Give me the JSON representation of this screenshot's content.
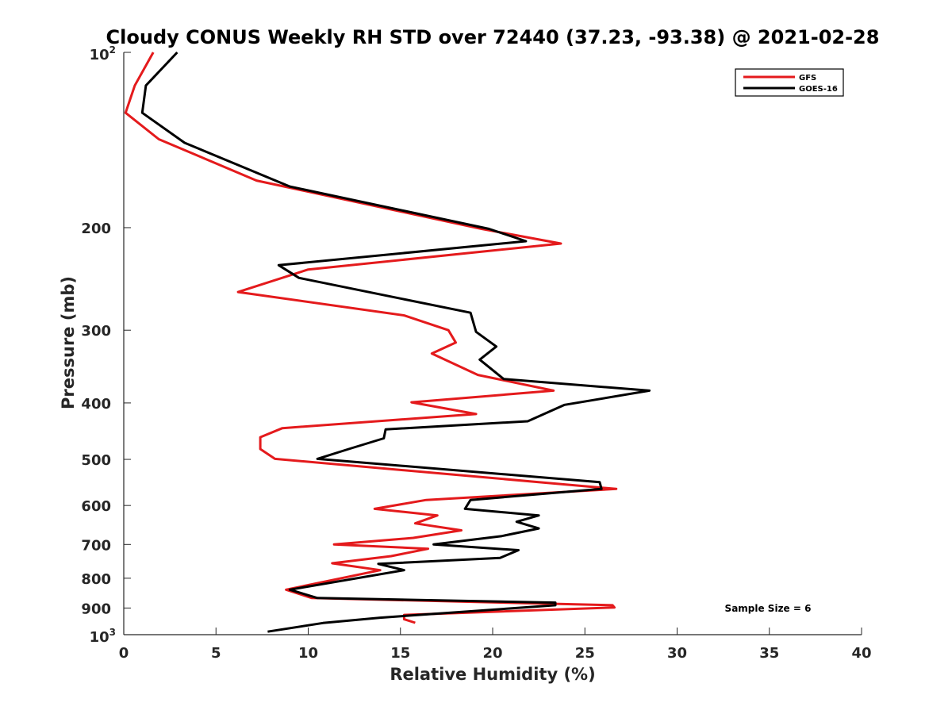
{
  "chart_data": {
    "type": "line",
    "title": "Cloudy CONUS Weekly RH STD over 72440 (37.23, -93.38) @ 2021-02-28",
    "xlabel": "Relative Humidity (%)",
    "ylabel": "Pressure (mb)",
    "xlim": [
      0,
      40
    ],
    "ylim": [
      100,
      1000
    ],
    "yscale": "log",
    "y_reversed": true,
    "grid": false,
    "legend_position": "top-right",
    "x_ticks": [
      "0",
      "5",
      "10",
      "15",
      "20",
      "25",
      "30",
      "35",
      "40"
    ],
    "y_ticks": [
      {
        "value": 100,
        "base": "10",
        "exp": "2"
      },
      {
        "value": 200,
        "label": "200"
      },
      {
        "value": 300,
        "label": "300"
      },
      {
        "value": 400,
        "label": "400"
      },
      {
        "value": 500,
        "label": "500"
      },
      {
        "value": 600,
        "label": "600"
      },
      {
        "value": 700,
        "label": "700"
      },
      {
        "value": 800,
        "label": "800"
      },
      {
        "value": 900,
        "label": "900"
      },
      {
        "value": 1000,
        "base": "10",
        "exp": "3"
      }
    ],
    "annotation": "Sample Size = 6",
    "series": [
      {
        "name": "GFS",
        "color": "#e41a1c",
        "points": [
          [
            1.6,
            100
          ],
          [
            0.6,
            114
          ],
          [
            0.1,
            127
          ],
          [
            1.9,
            141
          ],
          [
            7.2,
            166
          ],
          [
            19.4,
            201
          ],
          [
            23.7,
            213
          ],
          [
            10.0,
            236
          ],
          [
            6.2,
            258
          ],
          [
            15.2,
            283
          ],
          [
            17.6,
            300
          ],
          [
            18.0,
            315
          ],
          [
            16.7,
            329
          ],
          [
            19.2,
            358
          ],
          [
            23.3,
            381
          ],
          [
            15.6,
            399
          ],
          [
            19.1,
            418
          ],
          [
            8.6,
            442
          ],
          [
            7.4,
            458
          ],
          [
            7.4,
            480
          ],
          [
            8.2,
            499
          ],
          [
            22.5,
            547
          ],
          [
            26.7,
            562
          ],
          [
            16.4,
            587
          ],
          [
            13.6,
            608
          ],
          [
            17.0,
            624
          ],
          [
            15.8,
            644
          ],
          [
            18.3,
            662
          ],
          [
            15.7,
            682
          ],
          [
            11.4,
            700
          ],
          [
            16.5,
            712
          ],
          [
            14.5,
            733
          ],
          [
            11.3,
            754
          ],
          [
            13.9,
            775
          ],
          [
            8.8,
            837
          ],
          [
            10.2,
            865
          ],
          [
            26.5,
            890
          ],
          [
            26.6,
            898
          ],
          [
            15.2,
            925
          ],
          [
            15.2,
            941
          ],
          [
            15.8,
            954
          ]
        ]
      },
      {
        "name": "GOES-16",
        "color": "#000000",
        "points": [
          [
            2.9,
            100
          ],
          [
            1.2,
            114
          ],
          [
            1.0,
            127
          ],
          [
            3.3,
            143
          ],
          [
            9.0,
            170
          ],
          [
            19.8,
            201
          ],
          [
            21.8,
            211
          ],
          [
            8.4,
            232
          ],
          [
            9.5,
            244
          ],
          [
            18.8,
            280
          ],
          [
            19.1,
            302
          ],
          [
            20.2,
            320
          ],
          [
            19.3,
            337
          ],
          [
            20.6,
            364
          ],
          [
            28.5,
            381
          ],
          [
            23.9,
            403
          ],
          [
            21.9,
            430
          ],
          [
            14.2,
            444
          ],
          [
            14.1,
            460
          ],
          [
            12.2,
            480
          ],
          [
            10.5,
            499
          ],
          [
            25.8,
            547
          ],
          [
            25.9,
            562
          ],
          [
            18.8,
            587
          ],
          [
            18.5,
            608
          ],
          [
            22.5,
            624
          ],
          [
            21.3,
            640
          ],
          [
            22.5,
            657
          ],
          [
            20.5,
            677
          ],
          [
            16.8,
            700
          ],
          [
            21.4,
            716
          ],
          [
            20.4,
            738
          ],
          [
            13.8,
            756
          ],
          [
            15.2,
            775
          ],
          [
            9.0,
            837
          ],
          [
            10.5,
            865
          ],
          [
            23.4,
            881
          ],
          [
            23.4,
            890
          ],
          [
            13.9,
            935
          ],
          [
            10.8,
            955
          ],
          [
            7.8,
            988
          ]
        ]
      }
    ]
  }
}
